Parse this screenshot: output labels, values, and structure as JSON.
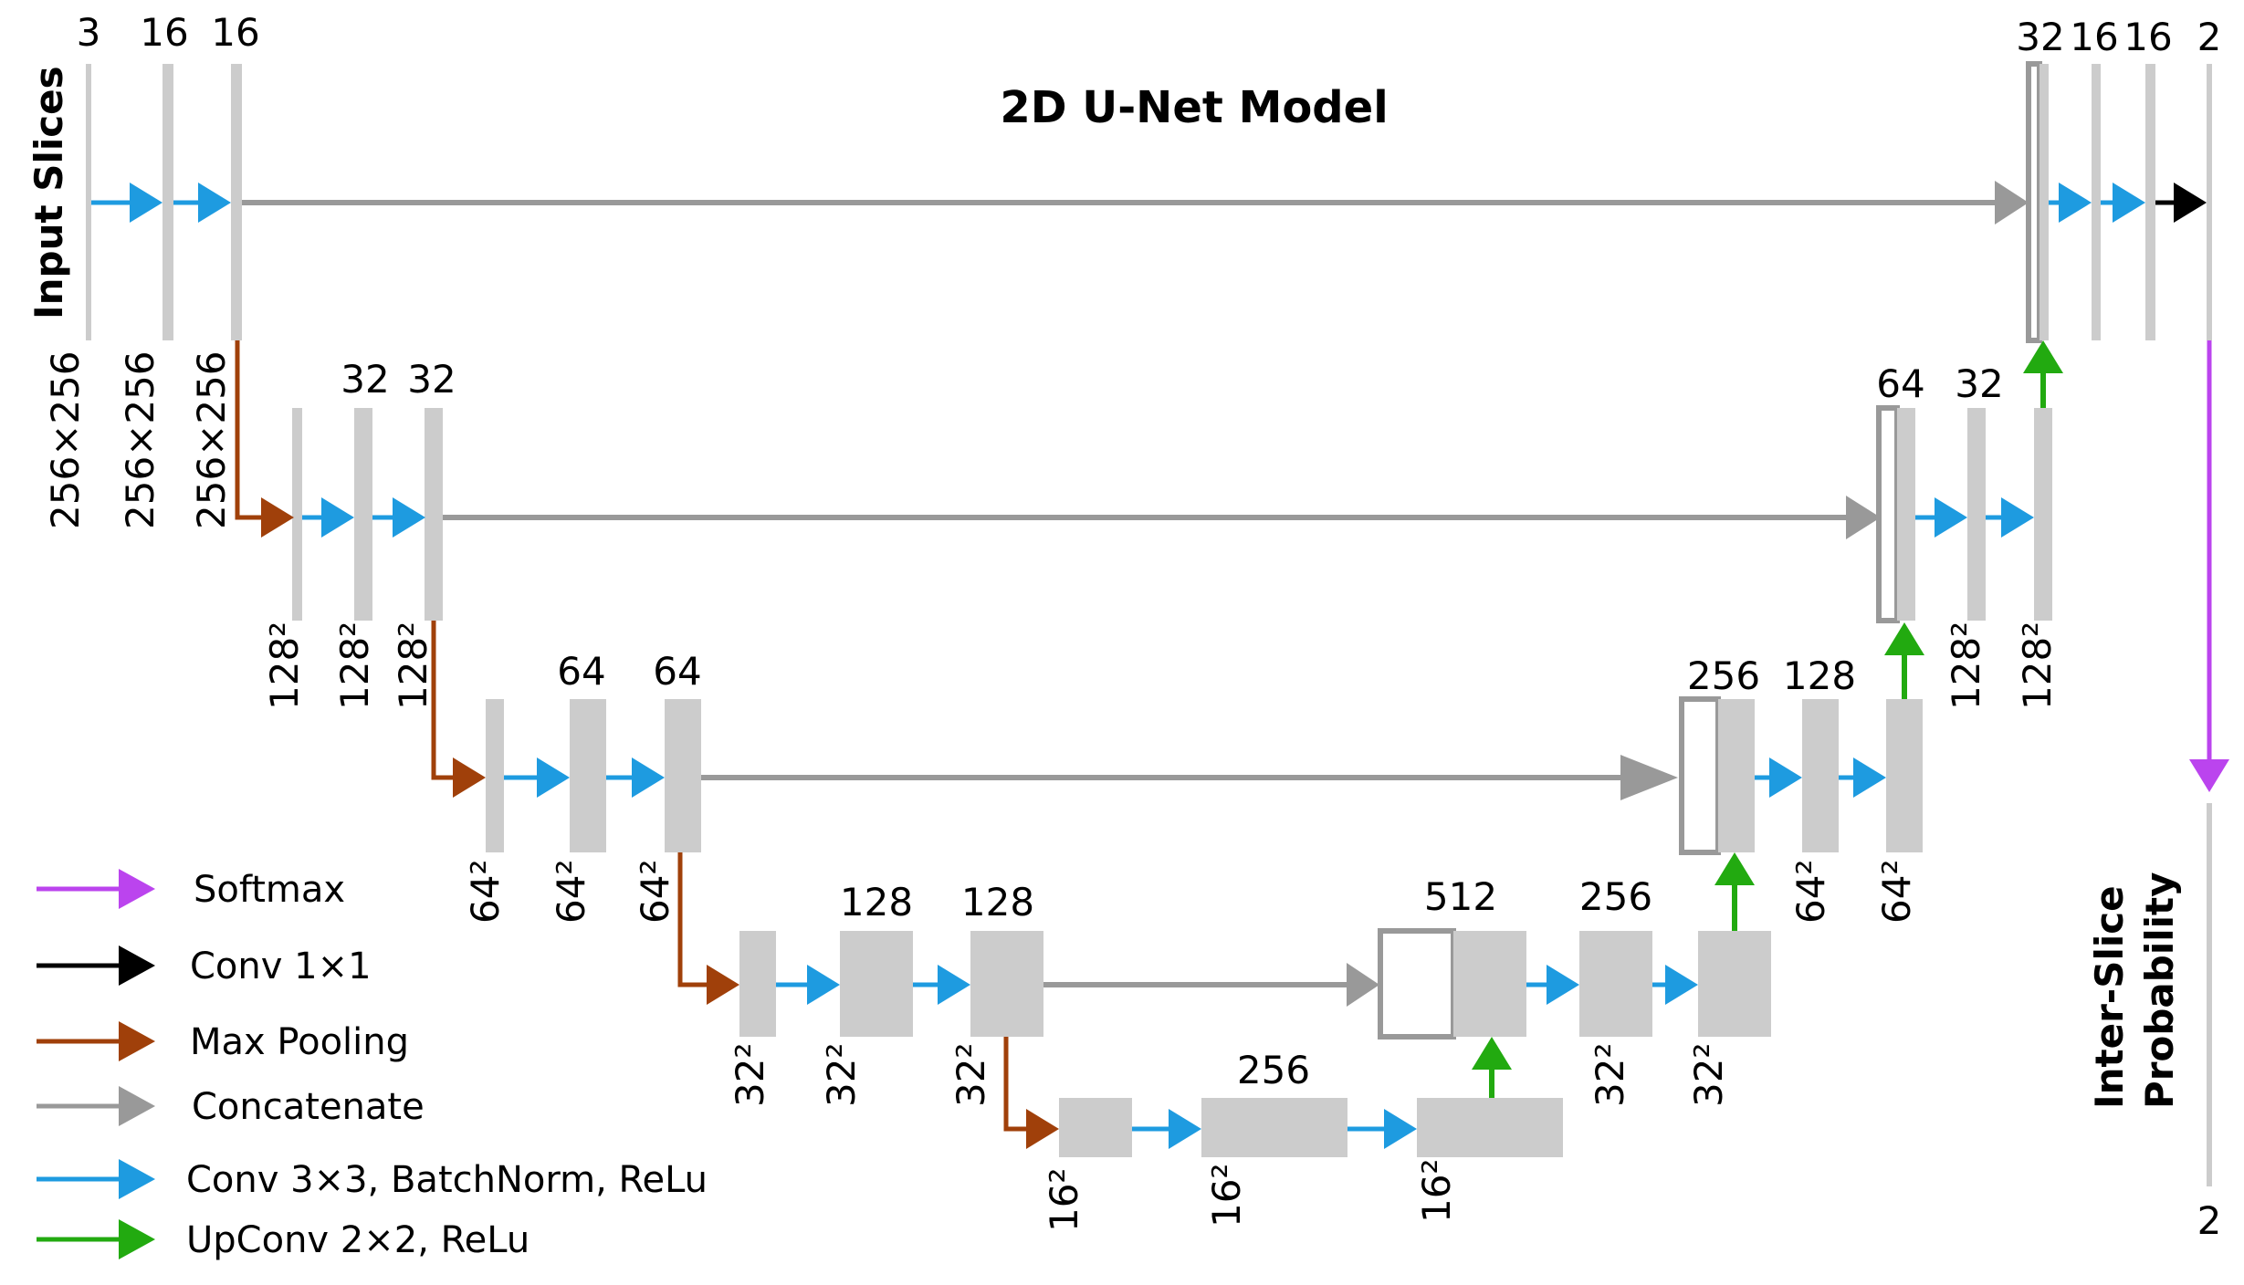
{
  "title": "2D U-Net Model",
  "input_label": "Input Slices",
  "output_label_line1": "Inter-Slice",
  "output_label_line2": "Probability",
  "colors": {
    "block": "#cccccc",
    "concat_box": "#999999",
    "softmax": "#bb44ee",
    "conv1x1": "#000000",
    "maxpool": "#a0400a",
    "concat": "#999999",
    "conv3x3": "#1e9be0",
    "upconv": "#22aa10"
  },
  "channels": {
    "l1_in": "3",
    "l1_a": "16",
    "l1_b": "16",
    "l2_a": "32",
    "l2_b": "32",
    "l3_a": "64",
    "l3_b": "64",
    "l4_a": "128",
    "l4_b": "128",
    "l5_a": "256",
    "u4_cat": "512",
    "u4_a": "256",
    "u3_cat": "256",
    "u3_a": "128",
    "u2_cat": "64",
    "u2_a": "32",
    "u1_cat": "32",
    "u1_a": "16",
    "u1_b": "16",
    "u1_out": "2",
    "out": "2"
  },
  "sizes": {
    "l1_1": "256×256",
    "l1_2": "256×256",
    "l1_3": "256×256",
    "l2_1": "128²",
    "l2_2": "128²",
    "l2_3": "128²",
    "l3_1": "64²",
    "l3_2": "64²",
    "l3_3": "64²",
    "l4_1": "32²",
    "l4_2": "32²",
    "l4_3": "32²",
    "l5_1": "16²",
    "l5_2": "16²",
    "l5_3": "16²",
    "u4_1": "32²",
    "u4_2": "32²",
    "u3_1": "64²",
    "u3_2": "64²",
    "u2_1": "128²",
    "u2_2": "128²"
  },
  "legend": [
    {
      "label": "Softmax",
      "color_key": "softmax",
      "icon": "arrow-right-icon"
    },
    {
      "label": "Conv 1×1",
      "color_key": "conv1x1",
      "icon": "arrow-right-icon"
    },
    {
      "label": "Max Pooling",
      "color_key": "maxpool",
      "icon": "arrow-right-icon"
    },
    {
      "label": "Concatenate",
      "color_key": "concat",
      "icon": "arrow-right-icon"
    },
    {
      "label": "Conv 3×3, BatchNorm, ReLu",
      "color_key": "conv3x3",
      "icon": "arrow-right-icon"
    },
    {
      "label": "UpConv 2×2, ReLu",
      "color_key": "upconv",
      "icon": "arrow-right-icon"
    }
  ]
}
